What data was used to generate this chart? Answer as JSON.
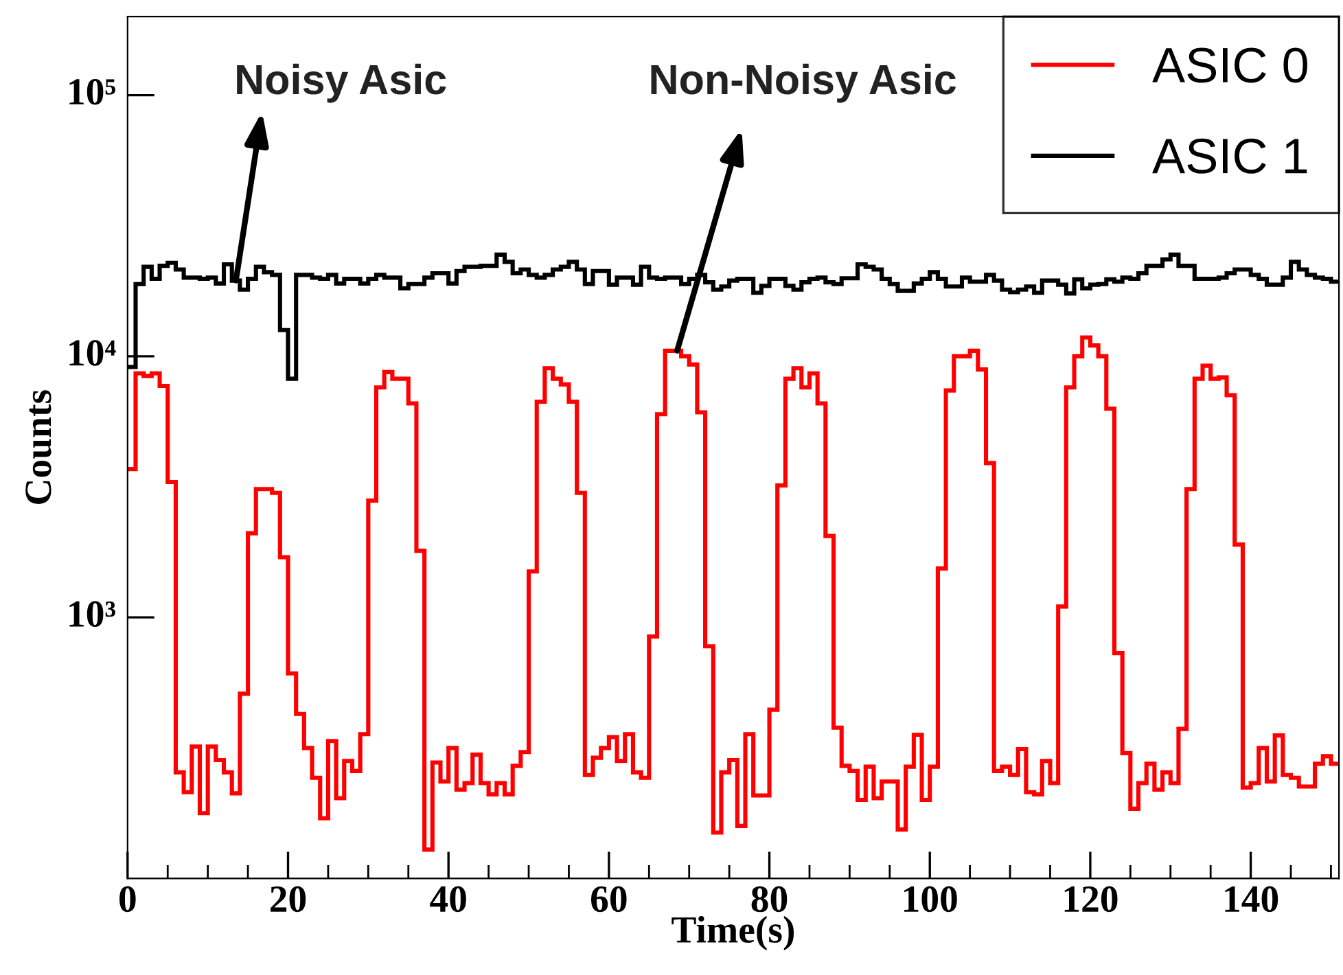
{
  "chart_data": {
    "type": "histogram",
    "xlabel": "Time(s)",
    "ylabel": "Counts",
    "log": "y",
    "grid": false,
    "legend": "top right",
    "bins": [
      0,
      1,
      2,
      3,
      4,
      5,
      6,
      7,
      8,
      9,
      10,
      11,
      12,
      13,
      14,
      15,
      16,
      17,
      18,
      19,
      20,
      21,
      22,
      23,
      24,
      25,
      26,
      27,
      28,
      29,
      30,
      31,
      32,
      33,
      34,
      35,
      36,
      37,
      38,
      39,
      40,
      41,
      42,
      43,
      44,
      45,
      46,
      47,
      48,
      49,
      50,
      51,
      52,
      53,
      54,
      55,
      56,
      57,
      58,
      59,
      60,
      61,
      62,
      63,
      64,
      65,
      66,
      67,
      68,
      69,
      70,
      71,
      72,
      73,
      74,
      75,
      76,
      77,
      78,
      79,
      80,
      81,
      82,
      83,
      84,
      85,
      86,
      87,
      88,
      89,
      90,
      91,
      92,
      93,
      94,
      95,
      96,
      97,
      98,
      99,
      100,
      101,
      102,
      103,
      104,
      105,
      106,
      107,
      108,
      109,
      110,
      111,
      112,
      113,
      114,
      115,
      116,
      117,
      118,
      119,
      120,
      121,
      122,
      123,
      124,
      125,
      126,
      127,
      128,
      129,
      130,
      131,
      132,
      133,
      134,
      135,
      136,
      137,
      138,
      139,
      140,
      141,
      142,
      143,
      144,
      145,
      146,
      147,
      148,
      149,
      150,
      151
    ],
    "xlim": [
      0,
      151
    ],
    "xticks": [
      0,
      20,
      40,
      60,
      80,
      100,
      120,
      140
    ],
    "ylim": [
      100,
      200000
    ],
    "yticks": [
      {
        "value": 1000,
        "label": "10³"
      },
      {
        "value": 10000,
        "label": "10⁴"
      },
      {
        "value": 100000,
        "label": "10⁵"
      }
    ],
    "series": [
      {
        "name": "ASIC 0",
        "color": "#ff0000",
        "values": [
          3700,
          8600,
          8400,
          8600,
          7700,
          3300,
          255,
          214,
          320,
          178,
          320,
          284,
          255,
          212,
          510,
          2100,
          3100,
          3100,
          3000,
          1700,
          610,
          427,
          316,
          243,
          170,
          336,
          203,
          282,
          258,
          357,
          2800,
          7600,
          8700,
          8200,
          8200,
          6600,
          1800,
          129,
          278,
          235,
          316,
          219,
          232,
          298,
          232,
          210,
          232,
          210,
          270,
          305,
          1500,
          6700,
          9000,
          8200,
          7800,
          6700,
          3000,
          249,
          290,
          316,
          348,
          282,
          357,
          255,
          243,
          845,
          6000,
          10500,
          10500,
          10000,
          9300,
          6100,
          775,
          150,
          255,
          284,
          159,
          357,
          208,
          208,
          443,
          3200,
          8200,
          9000,
          7600,
          8600,
          6600,
          2050,
          378,
          270,
          258,
          200,
          268,
          203,
          235,
          235,
          154,
          268,
          355,
          200,
          268,
          1540,
          7400,
          10000,
          10000,
          10500,
          8900,
          3900,
          258,
          268,
          249,
          313,
          214,
          210,
          282,
          232,
          1100,
          7600,
          10000,
          11800,
          11000,
          10000,
          6300,
          730,
          302,
          185,
          232,
          275,
          219,
          255,
          232,
          374,
          3100,
          8200,
          9200,
          8200,
          8300,
          7100,
          1900,
          223,
          232,
          316,
          235,
          353,
          249,
          243,
          225,
          225,
          275,
          294,
          275
        ]
      },
      {
        "name": "ASIC 1",
        "color": "#000000",
        "values": [
          9100,
          18900,
          22000,
          19800,
          22200,
          22800,
          21500,
          20000,
          20000,
          19800,
          20000,
          19000,
          22500,
          19500,
          18000,
          19800,
          22000,
          21000,
          20500,
          12600,
          8200,
          20500,
          20500,
          20000,
          19800,
          20500,
          19000,
          19800,
          19800,
          19000,
          19800,
          20500,
          20000,
          20000,
          18200,
          18900,
          18900,
          20000,
          20800,
          20800,
          19000,
          21200,
          22000,
          22000,
          22200,
          22200,
          24500,
          23000,
          20800,
          21500,
          20500,
          20000,
          20500,
          21500,
          22000,
          23000,
          21500,
          18900,
          21200,
          21200,
          18800,
          20000,
          20000,
          18800,
          22000,
          20000,
          19800,
          20000,
          20000,
          18900,
          19800,
          20500,
          19200,
          18000,
          18500,
          19500,
          19800,
          19800,
          17500,
          18600,
          19800,
          19800,
          18600,
          18000,
          19200,
          19800,
          20000,
          19200,
          18900,
          19900,
          19900,
          22500,
          22000,
          21500,
          19800,
          18900,
          17800,
          17800,
          19000,
          19800,
          21000,
          19800,
          18500,
          18500,
          20000,
          19300,
          19300,
          20500,
          19500,
          18000,
          17600,
          18000,
          18500,
          17500,
          19500,
          19500,
          18800,
          17400,
          19700,
          18200,
          18800,
          18900,
          19700,
          19300,
          20000,
          19800,
          20800,
          22200,
          22200,
          23500,
          24500,
          22200,
          22200,
          19800,
          19800,
          19800,
          20000,
          20800,
          21500,
          21500,
          20500,
          19800,
          18800,
          18800,
          20000,
          23000,
          21500,
          20500,
          20000,
          19800,
          19300
        ]
      }
    ],
    "annotations": [
      {
        "text": "Noisy Asic",
        "x": 13.5,
        "y": 19500
      },
      {
        "text": "Non-Noisy Asic",
        "x": 68.5,
        "y": 10500
      }
    ]
  }
}
